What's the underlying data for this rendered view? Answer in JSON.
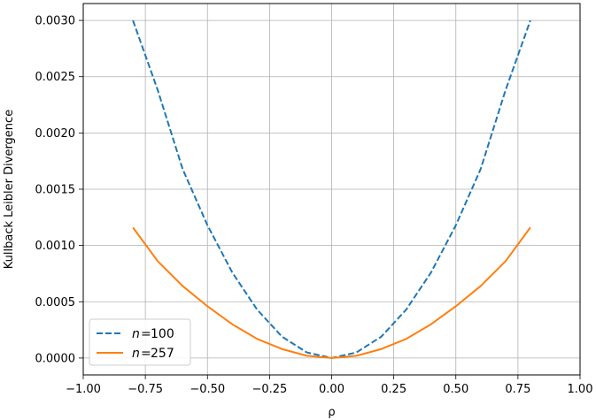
{
  "chart_data": {
    "type": "line",
    "title": "",
    "xlabel": "ρ",
    "ylabel": "Kullback Leibler Divergence",
    "xlim": [
      -1.0,
      1.0
    ],
    "ylim": [
      -0.00015,
      0.00315
    ],
    "grid": true,
    "legend_position": "lower-left",
    "x_ticks": [
      -1.0,
      -0.75,
      -0.5,
      -0.25,
      0.0,
      0.25,
      0.5,
      0.75,
      1.0
    ],
    "x_tick_labels": [
      "−1.00",
      "−0.75",
      "−0.50",
      "−0.25",
      "0.00",
      "0.25",
      "0.50",
      "0.75",
      "1.00"
    ],
    "y_ticks": [
      0.0,
      0.0005,
      0.001,
      0.0015,
      0.002,
      0.0025,
      0.003
    ],
    "y_tick_labels": [
      "0.0000",
      "0.0005",
      "0.0010",
      "0.0015",
      "0.0020",
      "0.0025",
      "0.0030"
    ],
    "series": [
      {
        "legend_prefix": "n",
        "legend_value": "100",
        "color": "#1f77b4",
        "style": "dashed",
        "x": [
          -0.8,
          -0.7,
          -0.6,
          -0.5,
          -0.4,
          -0.3,
          -0.2,
          -0.1,
          0.0,
          0.1,
          0.2,
          0.3,
          0.4,
          0.5,
          0.6,
          0.7,
          0.8
        ],
        "y": [
          0.003,
          0.00238,
          0.00168,
          0.00118,
          0.00076,
          0.00043,
          0.00019,
          5e-05,
          0.0,
          5e-05,
          0.00019,
          0.00043,
          0.00076,
          0.00118,
          0.00168,
          0.00238,
          0.003
        ]
      },
      {
        "legend_prefix": "n",
        "legend_value": "257",
        "color": "#ff7f0e",
        "style": "solid",
        "x": [
          -0.8,
          -0.7,
          -0.6,
          -0.5,
          -0.4,
          -0.3,
          -0.2,
          -0.1,
          0.0,
          0.1,
          0.2,
          0.3,
          0.4,
          0.5,
          0.6,
          0.7,
          0.8
        ],
        "y": [
          0.00116,
          0.00086,
          0.00064,
          0.00046,
          0.0003,
          0.00017,
          8e-05,
          2e-05,
          0.0,
          2e-05,
          8e-05,
          0.00017,
          0.0003,
          0.00046,
          0.00064,
          0.00086,
          0.00116
        ]
      }
    ]
  }
}
